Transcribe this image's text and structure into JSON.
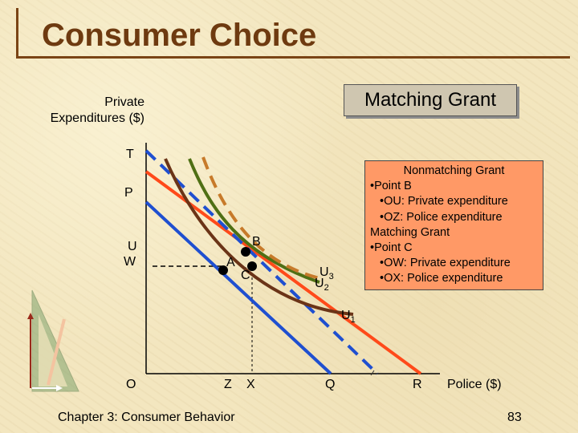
{
  "slide": {
    "title": "Consumer Choice",
    "footer_left": "Chapter 3: Consumer Behavior",
    "page_number": "83"
  },
  "diagram": {
    "y_axis_label": "Private\nExpenditures ($)",
    "x_axis_label": "Police ($)",
    "grant_box": "Matching Grant",
    "y_ticks": [
      "T",
      "P",
      "U",
      "W"
    ],
    "x_ticks": [
      "O",
      "Z",
      "X",
      "Q",
      "R"
    ],
    "points": [
      "A",
      "B",
      "C"
    ],
    "curves": {
      "u1": {
        "letter": "U",
        "subscript": "1"
      },
      "u2": {
        "letter": "U",
        "subscript": "2"
      },
      "u3": {
        "letter": "U",
        "subscript": "3"
      }
    },
    "colors": {
      "original_budget": "#1f4fd0",
      "nonmatching_budget": "#ff4a1a",
      "matching_budget": "#e04b15",
      "u1": "#6b3417",
      "u2": "#4f6f14",
      "u3": "#c77a2a"
    },
    "explanation": [
      "Nonmatching Grant",
      "•Point B",
      "•OU: Private expenditure",
      "•OZ: Police expenditure",
      "Matching Grant",
      "•Point C",
      "•OW: Private expenditure",
      "•OX: Police expenditure"
    ]
  }
}
